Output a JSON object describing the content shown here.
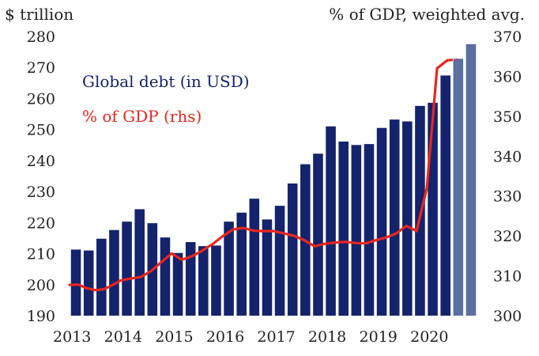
{
  "chart_data": {
    "type": "bar",
    "title": "",
    "left_axis_label": "$ trillion",
    "right_axis_label": "% of GDP, weighted avg.",
    "left_ylim": [
      190,
      280
    ],
    "left_ticks": [
      "190",
      "200",
      "210",
      "220",
      "230",
      "240",
      "250",
      "260",
      "270",
      "280"
    ],
    "right_ylim": [
      300,
      370
    ],
    "right_ticks": [
      "300",
      "310",
      "320",
      "330",
      "340",
      "350",
      "360",
      "370"
    ],
    "x_ticks": [
      "2013",
      "2014",
      "2015",
      "2016",
      "2017",
      "2018",
      "2019",
      "2020"
    ],
    "grid": false,
    "legend_placement": "top-left",
    "colors": {
      "bars": "#14236b",
      "bars_estimate": "#5a6fa0",
      "line": "#e8261f"
    },
    "series": [
      {
        "name": "Global debt (in USD)",
        "axis": "left",
        "quarters": [
          "2013Q1",
          "2013Q2",
          "2013Q3",
          "2013Q4",
          "2014Q1",
          "2014Q2",
          "2014Q3",
          "2014Q4",
          "2015Q1",
          "2015Q2",
          "2015Q3",
          "2015Q4",
          "2016Q1",
          "2016Q2",
          "2016Q3",
          "2016Q4",
          "2017Q1",
          "2017Q2",
          "2017Q3",
          "2017Q4",
          "2018Q1",
          "2018Q2",
          "2018Q3",
          "2018Q4",
          "2019Q1",
          "2019Q2",
          "2019Q3",
          "2019Q4",
          "2020Q1",
          "2020Q2",
          "2020Q3",
          "2020Q4"
        ],
        "values": [
          211.3,
          211.0,
          214.8,
          217.6,
          220.3,
          224.3,
          219.8,
          215.2,
          210.2,
          213.7,
          212.4,
          212.6,
          220.3,
          223.2,
          227.7,
          221.0,
          225.4,
          232.6,
          238.8,
          242.2,
          251.0,
          246.1,
          245.0,
          245.3,
          250.5,
          253.2,
          252.6,
          257.6,
          258.6,
          267.4,
          272.8,
          277.5
        ],
        "estimate_from": "2020Q3"
      },
      {
        "name": "% of GDP (rhs)",
        "axis": "right",
        "x": [
          2013.0,
          2013.17,
          2013.33,
          2013.5,
          2013.67,
          2013.83,
          2014.0,
          2014.2,
          2014.4,
          2014.6,
          2014.8,
          2015.0,
          2015.2,
          2015.4,
          2015.6,
          2015.8,
          2016.0,
          2016.2,
          2016.4,
          2016.6,
          2016.8,
          2017.0,
          2017.2,
          2017.4,
          2017.6,
          2017.8,
          2018.0,
          2018.2,
          2018.4,
          2018.6,
          2018.8,
          2019.0,
          2019.2,
          2019.4,
          2019.6,
          2019.8,
          2020.0,
          2020.2,
          2020.4,
          2020.6
        ],
        "values": [
          307.7,
          307.8,
          306.9,
          306.4,
          306.6,
          307.6,
          308.8,
          309.3,
          309.7,
          311.2,
          313.4,
          315.6,
          314.0,
          314.9,
          316.3,
          317.9,
          319.9,
          321.6,
          322.0,
          321.3,
          321.2,
          321.2,
          320.6,
          320.0,
          318.9,
          317.4,
          318.0,
          318.3,
          318.5,
          318.2,
          318.1,
          318.9,
          319.6,
          320.6,
          322.5,
          321.2,
          332.0,
          362.0,
          364.0,
          364.2
        ],
        "dashed_from_index": 38
      }
    ]
  }
}
